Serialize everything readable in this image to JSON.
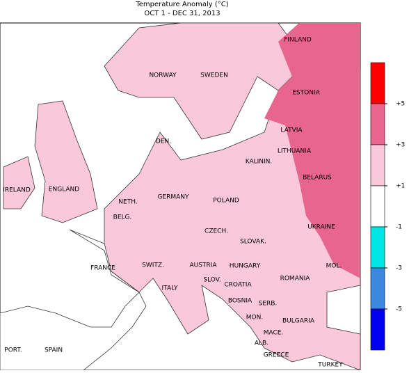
{
  "title": "Temperature Anomaly (°C)",
  "subtitle": "OCT  1 - DEC 31, 2013",
  "legend": {
    "colors": [
      "#ff0000",
      "#e8668d",
      "#fac8da",
      "#ffffff",
      "#00e6e6",
      "#3a88e0",
      "#0000f0"
    ],
    "ticks": [
      {
        "value": 5,
        "label": "+5"
      },
      {
        "value": 3,
        "label": "+3"
      },
      {
        "value": 1,
        "label": "+1"
      },
      {
        "value": -1,
        "label": "-1"
      },
      {
        "value": -3,
        "label": "-3"
      },
      {
        "value": -5,
        "label": "-5"
      }
    ]
  },
  "labels": [
    "FINLAND",
    "NORWAY",
    "SWEDEN",
    "ESTONIA",
    "LATVIA",
    "DEN.",
    "LITHUANIA",
    "KALININ.",
    "IRELAND",
    "ENGLAND",
    "BELARUS",
    "NETH.",
    "GERMANY",
    "POLAND",
    "BELG.",
    "CZECH.",
    "UKRAINE",
    "SLOVAK.",
    "FRANCE",
    "SWITZ.",
    "AUSTRIA",
    "HUNGARY",
    "MOL.",
    "ROMANIA",
    "SLOV.",
    "CROATIA",
    "ITALY",
    "BOSNIA",
    "SERB.",
    "MON.",
    "BULGARIA",
    "MACE.",
    "PORT.",
    "SPAIN",
    "ALB.",
    "GREECE",
    "TURKEY"
  ]
}
